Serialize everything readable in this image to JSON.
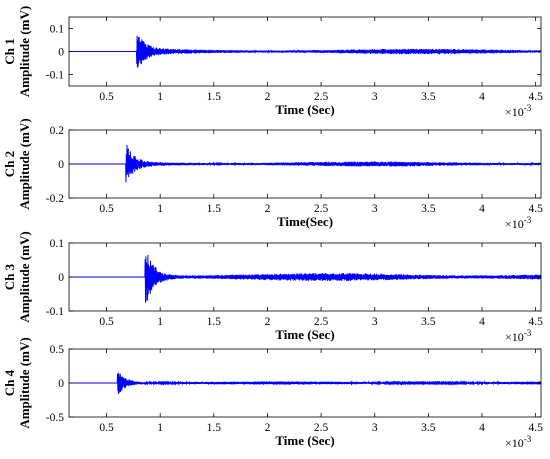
{
  "figure": {
    "signal_color": "#0000ff",
    "axis_color": "#000000"
  },
  "chart_data": [
    {
      "type": "line",
      "channel_label": "Ch 1",
      "ylabel": "Amplitude (mV)",
      "xlabel": "Time (Sec)",
      "x_multiplier": "×10",
      "x_exponent": "-3",
      "xlim": [
        0.15,
        4.55
      ],
      "ylim": [
        -0.15,
        0.15
      ],
      "xticks": [
        0.5,
        1,
        1.5,
        2,
        2.5,
        3,
        3.5,
        4,
        4.5
      ],
      "xtick_labels": [
        "0.5",
        "1",
        "1.5",
        "2",
        "2.5",
        "3",
        "3.5",
        "4",
        "4.5"
      ],
      "yticks": [
        -0.1,
        0,
        0.1
      ],
      "ytick_labels": [
        "-0.1",
        "0",
        "0.1"
      ],
      "series": [
        {
          "onset": 0.78,
          "peak_time": 0.83,
          "peak_amplitude": 0.09,
          "noise_amplitude": 0.012
        }
      ]
    },
    {
      "type": "line",
      "channel_label": "Ch 2",
      "ylabel": "Amplitude (mV)",
      "xlabel": "Time(Sec)",
      "x_multiplier": "×10",
      "x_exponent": "-3",
      "xlim": [
        0.15,
        4.55
      ],
      "ylim": [
        -0.2,
        0.2
      ],
      "xticks": [
        0.5,
        1,
        1.5,
        2,
        2.5,
        3,
        3.5,
        4,
        4.5
      ],
      "xtick_labels": [
        "0.5",
        "1",
        "1.5",
        "2",
        "2.5",
        "3",
        "3.5",
        "4",
        "4.5"
      ],
      "yticks": [
        -0.2,
        0,
        0.2
      ],
      "ytick_labels": [
        "-0.2",
        "0",
        "0.2"
      ],
      "series": [
        {
          "onset": 0.68,
          "peak_time": 0.72,
          "peak_amplitude": 0.12,
          "noise_amplitude": 0.015
        }
      ]
    },
    {
      "type": "line",
      "channel_label": "Ch 3",
      "ylabel": "Amplitude (mV)",
      "xlabel": "Time (Sec)",
      "x_multiplier": "×10",
      "x_exponent": "-3",
      "xlim": [
        0.15,
        4.55
      ],
      "ylim": [
        -0.1,
        0.1
      ],
      "xticks": [
        0.5,
        1,
        1.5,
        2,
        2.5,
        3,
        3.5,
        4,
        4.5
      ],
      "xtick_labels": [
        "0.5",
        "1",
        "1.5",
        "2",
        "2.5",
        "3",
        "3.5",
        "4",
        "4.5"
      ],
      "yticks": [
        -0.1,
        0,
        0.1
      ],
      "ytick_labels": [
        "-0.1",
        "0",
        "0.1"
      ],
      "series": [
        {
          "onset": 0.86,
          "peak_time": 0.89,
          "peak_amplitude": 0.095,
          "noise_amplitude": 0.012
        }
      ]
    },
    {
      "type": "line",
      "channel_label": "Ch 4",
      "ylabel": "Amplitude (mV)",
      "xlabel": "Time (Sec)",
      "x_multiplier": "×10",
      "x_exponent": "-3",
      "xlim": [
        0.15,
        4.55
      ],
      "ylim": [
        -0.5,
        0.5
      ],
      "xticks": [
        0.5,
        1,
        1.5,
        2,
        2.5,
        3,
        3.5,
        4,
        4.5
      ],
      "xtick_labels": [
        "0.5",
        "1",
        "1.5",
        "2",
        "2.5",
        "3",
        "3.5",
        "4",
        "4.5"
      ],
      "yticks": [
        -0.5,
        0,
        0.5
      ],
      "ytick_labels": [
        "-0.5",
        "0",
        "0.5"
      ],
      "series": [
        {
          "onset": 0.6,
          "peak_time": 0.63,
          "peak_amplitude": 0.2,
          "noise_amplitude": 0.025
        }
      ]
    }
  ]
}
